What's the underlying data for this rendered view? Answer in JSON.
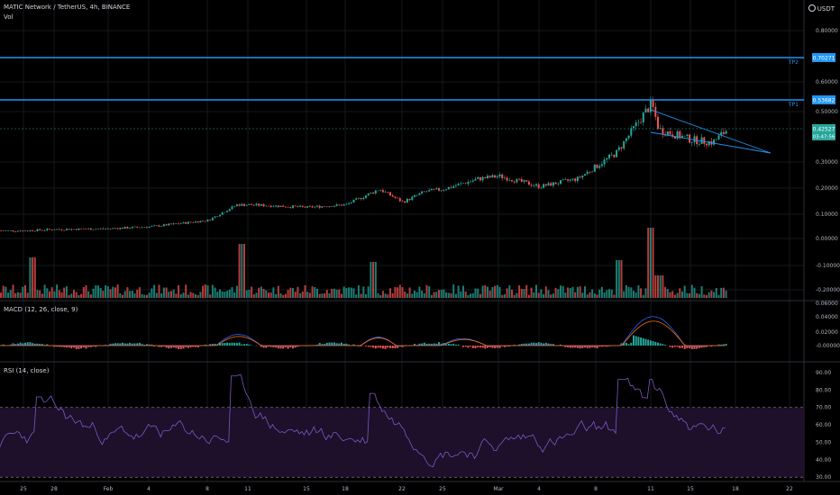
{
  "header": {
    "symbol_title": "MATIC Network / TetherUS, 4h, BINANCE",
    "volume_label": "Vol",
    "currency": "USDT"
  },
  "colors": {
    "up": "#26a69a",
    "down": "#ef5350",
    "level_line": "#2196f3",
    "macd_line": "#2962ff",
    "signal_line": "#ff6d00",
    "rsi_line": "#7e57c2",
    "rsi_band": "#1e0f2a",
    "price_tag": "#26a69a"
  },
  "chart_data": [
    {
      "type": "candlestick",
      "title": "MATIC Network / TetherUS, 4h, BINANCE",
      "y_ticks": [
        "0.80000",
        "0.60000",
        "0.50000",
        "0.30000",
        "0.20000",
        "0.10000",
        "0.00000",
        "-0.10000",
        "-0.20000"
      ],
      "x_ticks": [
        "25",
        "28",
        "Feb",
        "4",
        "8",
        "11",
        "15",
        "18",
        "22",
        "25",
        "Mar",
        "4",
        "8",
        "11",
        "15",
        "18",
        "22"
      ],
      "levels": [
        {
          "name": "TP2",
          "value": 0.70271,
          "label": "0.70271"
        },
        {
          "name": "TP1",
          "value": 0.53682,
          "label": "0.53682"
        }
      ],
      "last_price": {
        "value": 0.42527,
        "label": "0.42527",
        "countdown": "03:47:56"
      },
      "close_path": [
        [
          "25",
          0.03
        ],
        [
          "28",
          0.035
        ],
        [
          "Feb",
          0.038
        ],
        [
          "4",
          0.045
        ],
        [
          "8",
          0.07
        ],
        [
          "10",
          0.13
        ],
        [
          "11",
          0.13
        ],
        [
          "15",
          0.12
        ],
        [
          "18",
          0.13
        ],
        [
          "20",
          0.19
        ],
        [
          "22",
          0.14
        ],
        [
          "24",
          0.18
        ],
        [
          "25",
          0.19
        ],
        [
          "27",
          0.23
        ],
        [
          "Mar",
          0.24
        ],
        [
          "4",
          0.2
        ],
        [
          "7",
          0.23
        ],
        [
          "9",
          0.33
        ],
        [
          "11",
          0.52
        ],
        [
          "12",
          0.42
        ],
        [
          "15",
          0.38
        ],
        [
          "16",
          0.37
        ],
        [
          "17",
          0.42
        ]
      ],
      "pattern": "falling wedge"
    },
    {
      "type": "bar",
      "title": "Vol"
    },
    {
      "type": "line",
      "title": "MACD (12, 26, close, 9)",
      "y_ticks": [
        "0.06000",
        "0.04000",
        "0.02000",
        "-0.00000"
      ]
    },
    {
      "type": "line",
      "title": "RSI (14, close)",
      "y_ticks": [
        "90.00",
        "80.00",
        "70.00",
        "60.00",
        "50.00",
        "40.00",
        "30.00"
      ],
      "bands": [
        70,
        30
      ]
    }
  ]
}
